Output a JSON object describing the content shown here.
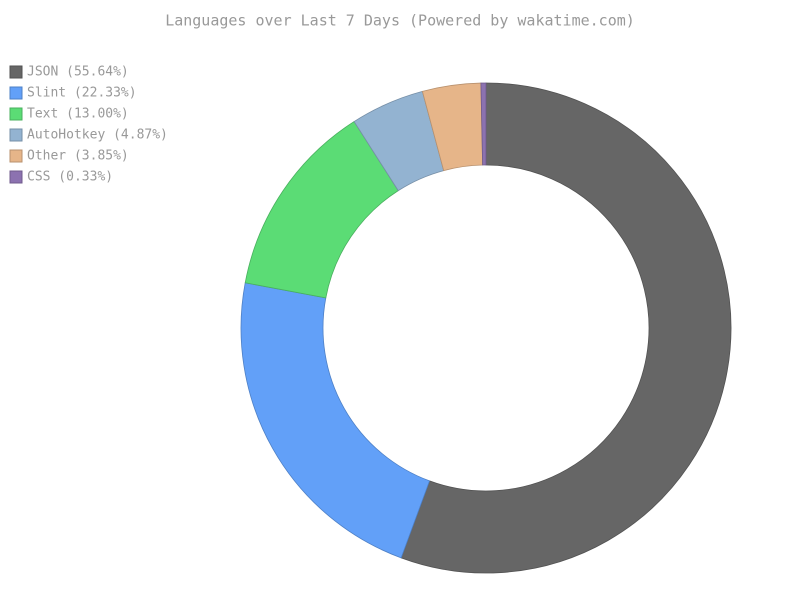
{
  "chart_data": {
    "type": "donut",
    "title": "Languages over Last 7 Days (Powered by wakatime.com)",
    "categories": [
      "JSON (55.64%)",
      "Slint (22.33%)",
      "Text (13.00%)",
      "AutoHotkey (4.87%)",
      "Other (3.85%)",
      "CSS (0.33%)"
    ],
    "values": [
      55.64,
      22.33,
      13.0,
      4.87,
      3.85,
      0.33
    ],
    "colors": [
      "#666666",
      "#62a0f8",
      "#5bdc75",
      "#93b3d1",
      "#e6b589",
      "#8c72b0"
    ],
    "legend": "top-left"
  }
}
